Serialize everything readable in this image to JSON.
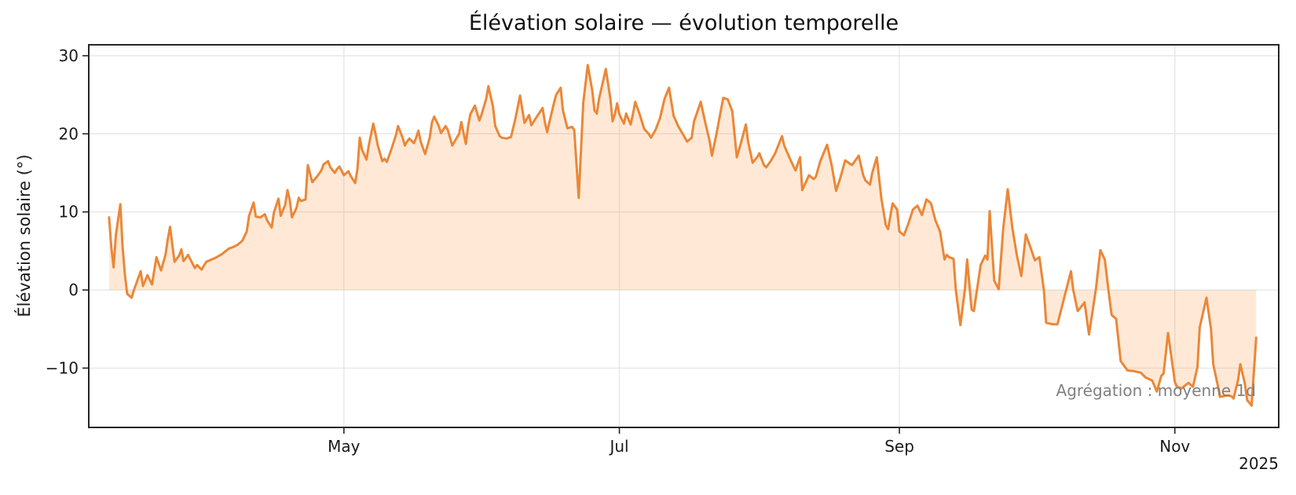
{
  "title": "Élévation solaire — évolution temporelle",
  "ylabel": "Élévation solaire (°)",
  "annotation": "Agrégation : moyenne 1d",
  "year_offset_label": "2025",
  "colors": {
    "line": "#ea8738",
    "fill": "rgba(255,127,14,0.17)",
    "grid": "#e6e6e6",
    "spine": "#262626",
    "tick_text": "#1a1a1a",
    "annotation_text": "#808080",
    "background": "#ffffff"
  },
  "chart_data": {
    "type": "line",
    "title": "Élévation solaire — évolution temporelle",
    "xlabel": "",
    "ylabel": "Élévation solaire (°)",
    "legend": null,
    "grid": true,
    "fill_to_zero": true,
    "x_unit": "days (daily mean series, t=0 at first sample; ticks mark month starts)",
    "xlim": [
      -4.5,
      259
    ],
    "ylim": [
      -17.6,
      31.4
    ],
    "x_tick_days": [
      52,
      113,
      175,
      236
    ],
    "x_tick_labels": [
      "May",
      "Jul",
      "Sep",
      "Nov"
    ],
    "x_offset_text": "2025",
    "y_ticks": [
      30,
      20,
      10,
      0,
      -10
    ],
    "y_tick_labels": [
      "30",
      "20",
      "10",
      "0",
      "−10"
    ],
    "points": [
      [
        0,
        9.3
      ],
      [
        0.5,
        5.5
      ],
      [
        1,
        2.9
      ],
      [
        1.5,
        7
      ],
      [
        2.5,
        11
      ],
      [
        3,
        5.5
      ],
      [
        3.5,
        2
      ],
      [
        4,
        -0.5
      ],
      [
        5,
        -1
      ],
      [
        5.5,
        0
      ],
      [
        6,
        0.8
      ],
      [
        7,
        2.4
      ],
      [
        7.5,
        0.5
      ],
      [
        8.5,
        1.9
      ],
      [
        9.5,
        0.7
      ],
      [
        10,
        2.5
      ],
      [
        10.5,
        4.2
      ],
      [
        11.5,
        2.5
      ],
      [
        12.5,
        4.5
      ],
      [
        13,
        6.5
      ],
      [
        13.5,
        8.1
      ],
      [
        14.5,
        3.6
      ],
      [
        15.5,
        4.4
      ],
      [
        16,
        5.2
      ],
      [
        16.5,
        3.7
      ],
      [
        17.5,
        4.5
      ],
      [
        19,
        2.8
      ],
      [
        19.5,
        3.2
      ],
      [
        20.5,
        2.6
      ],
      [
        21.5,
        3.6
      ],
      [
        23.5,
        4.1
      ],
      [
        25,
        4.6
      ],
      [
        26.5,
        5.3
      ],
      [
        27.5,
        5.5
      ],
      [
        28.5,
        5.8
      ],
      [
        29.5,
        6.3
      ],
      [
        30.5,
        7.5
      ],
      [
        31,
        9.5
      ],
      [
        32,
        11.2
      ],
      [
        32.5,
        9.4
      ],
      [
        33.5,
        9.3
      ],
      [
        34.5,
        9.7
      ],
      [
        35,
        8.9
      ],
      [
        36,
        8
      ],
      [
        36.5,
        9.9
      ],
      [
        37.5,
        11.7
      ],
      [
        38,
        9.5
      ],
      [
        39,
        10.9
      ],
      [
        39.5,
        12.8
      ],
      [
        40,
        11.5
      ],
      [
        40.5,
        9.3
      ],
      [
        41.5,
        10.5
      ],
      [
        42,
        11.8
      ],
      [
        42.5,
        11.4
      ],
      [
        43.5,
        11.6
      ],
      [
        44,
        16
      ],
      [
        45,
        13.8
      ],
      [
        46,
        14.5
      ],
      [
        47,
        15.3
      ],
      [
        47.5,
        16.1
      ],
      [
        48.5,
        16.5
      ],
      [
        49,
        15.7
      ],
      [
        50,
        15
      ],
      [
        50.5,
        15.5
      ],
      [
        51,
        15.8
      ],
      [
        52,
        14.7
      ],
      [
        53,
        15.2
      ],
      [
        53.5,
        14.6
      ],
      [
        54.5,
        13.7
      ],
      [
        55,
        15.5
      ],
      [
        55.5,
        19.5
      ],
      [
        56,
        18
      ],
      [
        57,
        16.7
      ],
      [
        57.5,
        18.5
      ],
      [
        58.5,
        21.3
      ],
      [
        59,
        20
      ],
      [
        59.5,
        18.5
      ],
      [
        60.5,
        16.5
      ],
      [
        61,
        16.8
      ],
      [
        61.5,
        16.4
      ],
      [
        62.5,
        18
      ],
      [
        63.5,
        19.8
      ],
      [
        64,
        21
      ],
      [
        65,
        19.5
      ],
      [
        65.5,
        18.5
      ],
      [
        66,
        19
      ],
      [
        66.5,
        19.4
      ],
      [
        67.5,
        18.8
      ],
      [
        68,
        19.5
      ],
      [
        68.5,
        20.4
      ],
      [
        69,
        19
      ],
      [
        70,
        17.4
      ],
      [
        71,
        19.5
      ],
      [
        71.5,
        21.5
      ],
      [
        72,
        22.2
      ],
      [
        73,
        21
      ],
      [
        73.5,
        20.1
      ],
      [
        74.5,
        21
      ],
      [
        75,
        20.5
      ],
      [
        75.5,
        19.5
      ],
      [
        76,
        18.5
      ],
      [
        76.5,
        19
      ],
      [
        77.5,
        20
      ],
      [
        78,
        21.5
      ],
      [
        79,
        18.7
      ],
      [
        79.5,
        21
      ],
      [
        80,
        22.5
      ],
      [
        81,
        23.6
      ],
      [
        82,
        21.7
      ],
      [
        82.5,
        22.5
      ],
      [
        83.5,
        24.5
      ],
      [
        84,
        26.1
      ],
      [
        85,
        23.5
      ],
      [
        85.5,
        21
      ],
      [
        86.5,
        19.7
      ],
      [
        87,
        19.5
      ],
      [
        88,
        19.4
      ],
      [
        89,
        19.6
      ],
      [
        90,
        22
      ],
      [
        91,
        24.9
      ],
      [
        92,
        21.4
      ],
      [
        93,
        22.4
      ],
      [
        93.5,
        21.1
      ],
      [
        94.5,
        22
      ],
      [
        96,
        23.3
      ],
      [
        96.5,
        21.5
      ],
      [
        97,
        20.2
      ],
      [
        97.5,
        21.5
      ],
      [
        98.5,
        23.9
      ],
      [
        99,
        25
      ],
      [
        100,
        25.9
      ],
      [
        100.5,
        23
      ],
      [
        101.5,
        20.7
      ],
      [
        102.5,
        20.9
      ],
      [
        103,
        20.5
      ],
      [
        104,
        11.8
      ],
      [
        105,
        24
      ],
      [
        106,
        28.8
      ],
      [
        107,
        25.5
      ],
      [
        107.5,
        23
      ],
      [
        108,
        22.6
      ],
      [
        108.5,
        24.5
      ],
      [
        109.5,
        27
      ],
      [
        110,
        28.3
      ],
      [
        111,
        24.5
      ],
      [
        111.5,
        21.6
      ],
      [
        112,
        22.5
      ],
      [
        112.5,
        23.9
      ],
      [
        113,
        22.5
      ],
      [
        114,
        21.3
      ],
      [
        114.5,
        22.6
      ],
      [
        115.5,
        21.2
      ],
      [
        116,
        22.5
      ],
      [
        116.5,
        24.1
      ],
      [
        117.5,
        22.5
      ],
      [
        118.5,
        20.6
      ],
      [
        119.5,
        20
      ],
      [
        120,
        19.5
      ],
      [
        121,
        20.5
      ],
      [
        122,
        22
      ],
      [
        123,
        24.5
      ],
      [
        124,
        25.9
      ],
      [
        125,
        22.3
      ],
      [
        126,
        21
      ],
      [
        127,
        20
      ],
      [
        128,
        19
      ],
      [
        129,
        19.5
      ],
      [
        129.5,
        21.5
      ],
      [
        131,
        24.1
      ],
      [
        132,
        21.5
      ],
      [
        133,
        19
      ],
      [
        133.5,
        17.2
      ],
      [
        134.5,
        20
      ],
      [
        136,
        24.6
      ],
      [
        137,
        24.4
      ],
      [
        138,
        22.9
      ],
      [
        139,
        17
      ],
      [
        140,
        19
      ],
      [
        141,
        21.2
      ],
      [
        141.5,
        19
      ],
      [
        142.5,
        16.3
      ],
      [
        143.5,
        17
      ],
      [
        144,
        17.5
      ],
      [
        145,
        16
      ],
      [
        145.5,
        15.7
      ],
      [
        146.5,
        16.5
      ],
      [
        147.5,
        17.5
      ],
      [
        149,
        19.7
      ],
      [
        149.5,
        18.5
      ],
      [
        151,
        16.5
      ],
      [
        152,
        15.3
      ],
      [
        153,
        17
      ],
      [
        153.5,
        12.8
      ],
      [
        155,
        14.7
      ],
      [
        156,
        14.2
      ],
      [
        156.5,
        14.5
      ],
      [
        157.5,
        16.5
      ],
      [
        159,
        18.6
      ],
      [
        160,
        16
      ],
      [
        161,
        12.7
      ],
      [
        162,
        14.5
      ],
      [
        163,
        16.6
      ],
      [
        164.5,
        16
      ],
      [
        166,
        17.2
      ],
      [
        167,
        14.7
      ],
      [
        167.5,
        14
      ],
      [
        168.5,
        13.5
      ],
      [
        169,
        15
      ],
      [
        170,
        17
      ],
      [
        171,
        11.8
      ],
      [
        172,
        8.3
      ],
      [
        172.5,
        7.8
      ],
      [
        173.5,
        11.1
      ],
      [
        174.5,
        10.3
      ],
      [
        175,
        7.5
      ],
      [
        176,
        7
      ],
      [
        177,
        8.5
      ],
      [
        178,
        10.3
      ],
      [
        179,
        10.8
      ],
      [
        180,
        9.6
      ],
      [
        181,
        11.6
      ],
      [
        182,
        11.1
      ],
      [
        183,
        8.9
      ],
      [
        184,
        7.5
      ],
      [
        185,
        3.9
      ],
      [
        185.5,
        4.5
      ],
      [
        186,
        4.2
      ],
      [
        187,
        4
      ],
      [
        187.5,
        0
      ],
      [
        188.5,
        -4.5
      ],
      [
        189.5,
        0
      ],
      [
        190,
        3.9
      ],
      [
        191,
        -2.5
      ],
      [
        191.5,
        -2.7
      ],
      [
        193,
        3.2
      ],
      [
        194,
        4.4
      ],
      [
        194.5,
        3.9
      ],
      [
        195,
        10.1
      ],
      [
        196,
        1.2
      ],
      [
        197,
        0.1
      ],
      [
        198,
        7.9
      ],
      [
        199,
        12.9
      ],
      [
        200,
        8
      ],
      [
        201,
        4.5
      ],
      [
        202,
        1.8
      ],
      [
        203,
        7.1
      ],
      [
        204,
        5.5
      ],
      [
        205,
        3.8
      ],
      [
        206,
        4.2
      ],
      [
        207,
        0
      ],
      [
        207.5,
        -4.2
      ],
      [
        209,
        -4.4
      ],
      [
        210,
        -4.4
      ],
      [
        211.5,
        -1
      ],
      [
        213,
        2.4
      ],
      [
        213.5,
        0
      ],
      [
        214.5,
        -2.7
      ],
      [
        216,
        -1.6
      ],
      [
        217,
        -5.7
      ],
      [
        218.5,
        0
      ],
      [
        219.5,
        5.1
      ],
      [
        220.5,
        3.9
      ],
      [
        221.5,
        -1
      ],
      [
        222,
        -3.2
      ],
      [
        223,
        -3.7
      ],
      [
        224,
        -9.1
      ],
      [
        225.5,
        -10.3
      ],
      [
        227,
        -10.4
      ],
      [
        228.5,
        -10.6
      ],
      [
        229.5,
        -11.2
      ],
      [
        231,
        -11.6
      ],
      [
        232,
        -13
      ],
      [
        233,
        -11
      ],
      [
        233.5,
        -10.7
      ],
      [
        234.5,
        -5.5
      ],
      [
        236,
        -11.8
      ],
      [
        236.5,
        -12.4
      ],
      [
        237.5,
        -12.6
      ],
      [
        239,
        -11.9
      ],
      [
        240,
        -12.4
      ],
      [
        241,
        -9.9
      ],
      [
        241.5,
        -4.8
      ],
      [
        243,
        -1
      ],
      [
        244,
        -5
      ],
      [
        244.5,
        -9.5
      ],
      [
        245.5,
        -12.2
      ],
      [
        246,
        -13.7
      ],
      [
        247.5,
        -13.5
      ],
      [
        248.5,
        -13.6
      ],
      [
        249,
        -13.9
      ],
      [
        250,
        -11.5
      ],
      [
        250.5,
        -9.5
      ],
      [
        251.5,
        -12
      ],
      [
        252,
        -14.1
      ],
      [
        253,
        -14.8
      ],
      [
        254,
        -6.1
      ]
    ]
  }
}
